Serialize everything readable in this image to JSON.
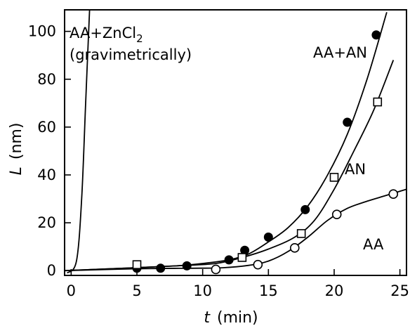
{
  "chart_data": {
    "type": "scatter",
    "xlabel": "t",
    "xunit": "(min)",
    "ylabel": "L",
    "yunit": "(nm)",
    "xlim": [
      -0.5,
      25.5
    ],
    "ylim": [
      -2,
      109
    ],
    "xticks": [
      "0",
      "5",
      "10",
      "15",
      "20",
      "25"
    ],
    "xtick_values": [
      0,
      5,
      10,
      15,
      20,
      25
    ],
    "yticks": [
      "0",
      "20",
      "40",
      "60",
      "80",
      "100"
    ],
    "ytick_values": [
      0,
      20,
      40,
      60,
      80,
      100
    ],
    "annotation": {
      "line1_main": "AA+ZnCl",
      "line1_sub": "2",
      "line2": "(gravimetrically)"
    },
    "gravimetric_curve": [
      [
        -0.3,
        -1
      ],
      [
        0.4,
        4
      ],
      [
        0.8,
        30
      ],
      [
        1.1,
        70
      ],
      [
        1.4,
        110
      ]
    ],
    "series": [
      {
        "name": "AA+AN",
        "marker": "filled-circle",
        "x": [
          5,
          6.8,
          8.8,
          12,
          13.2,
          15,
          17.8,
          21,
          23.2
        ],
        "y": [
          1,
          1,
          2,
          4.5,
          8.5,
          14,
          25.5,
          62,
          98.5
        ],
        "curve": [
          [
            -0.5,
            0
          ],
          [
            4,
            1
          ],
          [
            6,
            1.5
          ],
          [
            8,
            2
          ],
          [
            10,
            3
          ],
          [
            12,
            4.5
          ],
          [
            13.5,
            7
          ],
          [
            15,
            12
          ],
          [
            16.5,
            18
          ],
          [
            18,
            27
          ],
          [
            19.5,
            40
          ],
          [
            21,
            57
          ],
          [
            22.5,
            80
          ],
          [
            24,
            108
          ]
        ]
      },
      {
        "name": "AN",
        "marker": "open-square",
        "x": [
          5,
          13,
          17.5,
          20,
          23.3
        ],
        "y": [
          2.5,
          5.5,
          15.5,
          39,
          70.5
        ],
        "curve": [
          [
            -0.5,
            0
          ],
          [
            4,
            1
          ],
          [
            8,
            2
          ],
          [
            11,
            3
          ],
          [
            13,
            5.5
          ],
          [
            15,
            9
          ],
          [
            17,
            14
          ],
          [
            18.5,
            21
          ],
          [
            20,
            34
          ],
          [
            21.5,
            50
          ],
          [
            23,
            67
          ],
          [
            24.5,
            88
          ]
        ]
      },
      {
        "name": "AA",
        "marker": "open-circle",
        "x": [
          11,
          14.2,
          17,
          20.2,
          24.5
        ],
        "y": [
          0.5,
          2.5,
          9.5,
          23.5,
          32
        ],
        "curve": [
          [
            -0.5,
            0
          ],
          [
            5,
            0.8
          ],
          [
            9,
            1
          ],
          [
            11.5,
            1.2
          ],
          [
            13.5,
            2.2
          ],
          [
            15,
            4
          ],
          [
            16.5,
            8
          ],
          [
            18,
            14
          ],
          [
            19.5,
            21
          ],
          [
            21,
            26
          ],
          [
            22.5,
            29
          ],
          [
            24,
            31.5
          ],
          [
            25.5,
            34
          ]
        ]
      }
    ]
  }
}
